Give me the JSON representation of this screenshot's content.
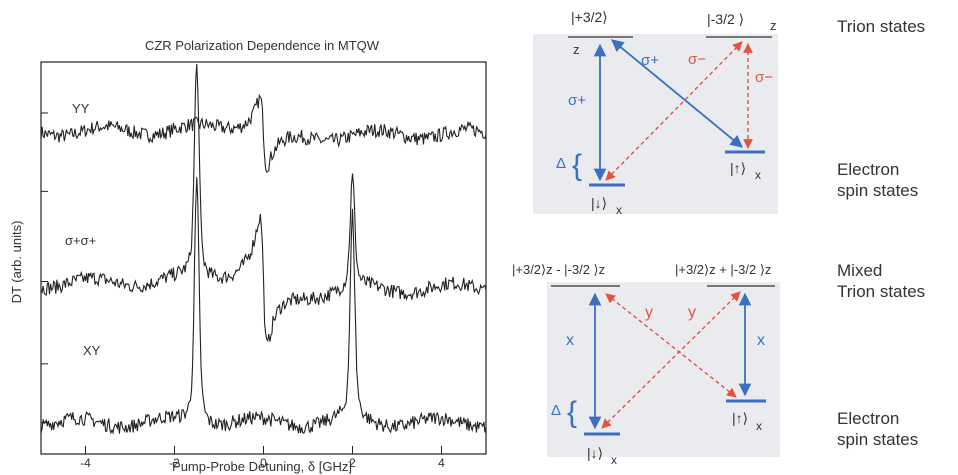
{
  "figure": {
    "chart_data": {
      "type": "line",
      "title": "CZR Polarization Dependence in MTQW",
      "xlabel": "Pump-Probe Detuning, δ [GHz]",
      "ylabel": "DT (arb. units)",
      "xlim": [
        -5,
        5
      ],
      "x_ticks": [
        -4,
        -2,
        0,
        2,
        4
      ],
      "grid": false,
      "series": [
        {
          "name": "YY",
          "baseline": 0.82,
          "features": [
            {
              "x": 0.0,
              "shape": "dispersive",
              "amp": 0.18
            }
          ]
        },
        {
          "name": "σ+σ+",
          "baseline": 0.43,
          "features": [
            {
              "x": -1.5,
              "shape": "peak",
              "amp": 0.55
            },
            {
              "x": 0.0,
              "shape": "dispersive",
              "amp": 0.33
            },
            {
              "x": 2.0,
              "shape": "peak",
              "amp": 0.28
            }
          ]
        },
        {
          "name": "XY",
          "baseline": 0.08,
          "features": [
            {
              "x": -1.5,
              "shape": "peak",
              "amp": 0.62
            },
            {
              "x": 2.0,
              "shape": "peak",
              "amp": 0.52
            }
          ]
        }
      ]
    },
    "diagram_top": {
      "upper_left_state": "|+3/2⟩",
      "upper_left_sub": "z",
      "upper_right_state": "|-3/2 ⟩",
      "upper_right_sub": "z",
      "lower_left_state": "|↓⟩",
      "lower_left_sub": "x",
      "lower_right_state": "|↑⟩",
      "lower_right_sub": "x",
      "label_left_vertical": "σ+",
      "label_diagonal": "σ+",
      "label_cross": "σ−",
      "label_right_vertical": "σ−",
      "delta": "Δ",
      "brace": "{"
    },
    "diagram_bottom": {
      "upper_left_state": "|+3/2⟩z - |-3/2 ⟩z",
      "upper_right_state": "|+3/2⟩z + |-3/2 ⟩z",
      "lower_left_state": "|↓⟩",
      "lower_left_sub": "x",
      "lower_right_state": "|↑⟩",
      "lower_right_sub": "x",
      "label_left_vertical": "x",
      "label_right_vertical": "x",
      "label_cross_1": "y",
      "label_cross_2": "y",
      "delta": "Δ",
      "brace": "{"
    },
    "side_labels": {
      "trion": "Trion states",
      "electron_top": "Electron\nspin states",
      "mixed": "Mixed\nTrion states",
      "electron_bottom": "Electron\nspin states"
    },
    "colors": {
      "blue": "#3b6fc0",
      "red": "#e0553f",
      "trace": "#222222",
      "panel": "#e9ebee"
    }
  }
}
